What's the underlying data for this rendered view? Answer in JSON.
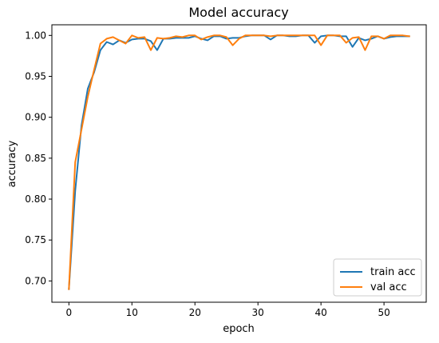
{
  "chart_data": {
    "type": "line",
    "title": "Model accuracy",
    "xlabel": "epoch",
    "ylabel": "accuracy",
    "xlim": [
      -2.7,
      56.7
    ],
    "ylim": [
      0.674,
      1.013
    ],
    "xticks": [
      0,
      10,
      20,
      30,
      40,
      50
    ],
    "yticks": [
      0.7,
      0.75,
      0.8,
      0.85,
      0.9,
      0.95,
      1.0
    ],
    "xtick_labels": [
      "0",
      "10",
      "20",
      "30",
      "40",
      "50"
    ],
    "ytick_labels": [
      "0.70",
      "0.75",
      "0.80",
      "0.85",
      "0.90",
      "0.95",
      "1.00"
    ],
    "x": [
      0,
      1,
      2,
      3,
      4,
      5,
      6,
      7,
      8,
      9,
      10,
      11,
      12,
      13,
      14,
      15,
      16,
      17,
      18,
      19,
      20,
      21,
      22,
      23,
      24,
      25,
      26,
      27,
      28,
      29,
      30,
      31,
      32,
      33,
      34,
      35,
      36,
      37,
      38,
      39,
      40,
      41,
      42,
      43,
      44,
      45,
      46,
      47,
      48,
      49,
      50,
      51,
      52,
      53,
      54
    ],
    "series": [
      {
        "name": "train acc",
        "color": "#1f77b4",
        "values": [
          0.69,
          0.81,
          0.89,
          0.935,
          0.955,
          0.982,
          0.992,
          0.989,
          0.994,
          0.991,
          0.995,
          0.996,
          0.996,
          0.993,
          0.982,
          0.996,
          0.996,
          0.997,
          0.997,
          0.997,
          0.999,
          0.996,
          0.994,
          0.999,
          0.999,
          0.996,
          0.997,
          0.997,
          0.999,
          1.0,
          1.0,
          1.0,
          0.995,
          1.0,
          1.0,
          0.999,
          0.999,
          1.0,
          1.0,
          0.991,
          0.999,
          1.0,
          1.0,
          0.999,
          0.999,
          0.986,
          0.997,
          0.994,
          0.996,
          0.999,
          0.996,
          0.998,
          0.999,
          0.999,
          0.999
        ]
      },
      {
        "name": "val acc",
        "color": "#ff7f0e",
        "values": [
          0.69,
          0.845,
          0.885,
          0.925,
          0.958,
          0.99,
          0.996,
          0.998,
          0.994,
          0.99,
          1.0,
          0.997,
          0.998,
          0.982,
          0.997,
          0.996,
          0.997,
          0.999,
          0.998,
          1.0,
          1.0,
          0.995,
          0.998,
          1.0,
          1.0,
          0.998,
          0.988,
          0.996,
          1.0,
          1.0,
          1.0,
          1.0,
          0.999,
          1.0,
          1.0,
          1.0,
          1.0,
          1.0,
          1.0,
          1.0,
          0.988,
          1.0,
          1.0,
          1.0,
          0.991,
          0.997,
          0.998,
          0.982,
          0.999,
          0.999,
          0.996,
          1.0,
          1.0,
          1.0,
          0.999
        ]
      }
    ],
    "legend_position": "bottom-right",
    "grid": false
  }
}
